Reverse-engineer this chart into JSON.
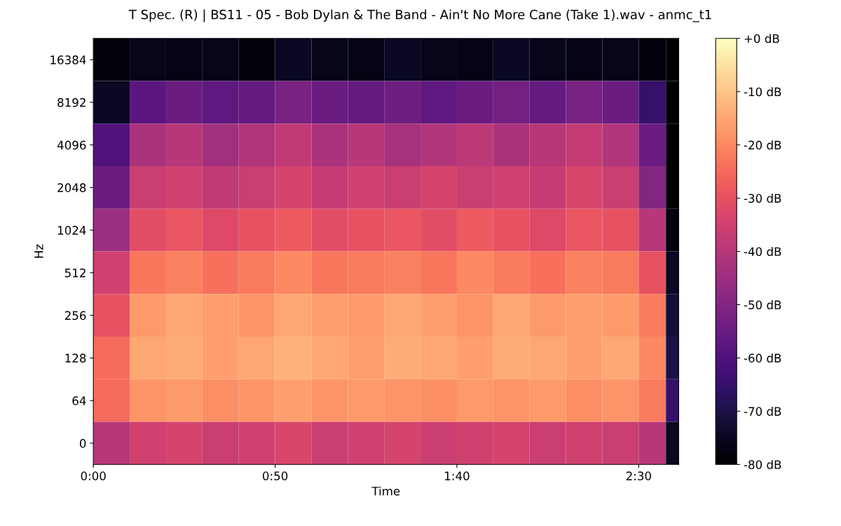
{
  "chart_data": {
    "type": "heatmap",
    "title": "T Spec. (R) | BS11 - 05 - Bob Dylan & The Band - Ain't No More Cane (Take 1).wav - anmc_t1",
    "xlabel": "Time",
    "ylabel": "Hz",
    "x": [
      5,
      15,
      25,
      35,
      45,
      55,
      65,
      75,
      85,
      95,
      105,
      115,
      125,
      135,
      145,
      155,
      160
    ],
    "y_categories": [
      "16384",
      "8192",
      "4096",
      "2048",
      "1024",
      "512",
      "256",
      "128",
      "64",
      "0"
    ],
    "cells": [
      [
        -78,
        -76,
        -77,
        -76,
        -78,
        -75,
        -76,
        -77,
        -75,
        -76,
        -77,
        -75,
        -76,
        -77,
        -76,
        -78,
        -80
      ],
      [
        -75,
        -58,
        -55,
        -57,
        -56,
        -52,
        -55,
        -56,
        -54,
        -57,
        -55,
        -53,
        -56,
        -52,
        -55,
        -65,
        -80
      ],
      [
        -60,
        -42,
        -40,
        -44,
        -41,
        -38,
        -42,
        -40,
        -43,
        -41,
        -39,
        -42,
        -40,
        -37,
        -41,
        -55,
        -80
      ],
      [
        -55,
        -36,
        -35,
        -38,
        -36,
        -34,
        -37,
        -35,
        -36,
        -34,
        -36,
        -35,
        -37,
        -33,
        -36,
        -50,
        -80
      ],
      [
        -45,
        -31,
        -29,
        -32,
        -30,
        -28,
        -31,
        -30,
        -29,
        -31,
        -28,
        -30,
        -32,
        -29,
        -30,
        -40,
        -78
      ],
      [
        -35,
        -23,
        -21,
        -24,
        -22,
        -20,
        -23,
        -22,
        -21,
        -23,
        -20,
        -22,
        -24,
        -21,
        -22,
        -30,
        -75
      ],
      [
        -30,
        -17,
        -15,
        -16,
        -18,
        -15,
        -16,
        -17,
        -15,
        -16,
        -18,
        -15,
        -17,
        -16,
        -17,
        -22,
        -72
      ],
      [
        -25,
        -15,
        -14,
        -16,
        -15,
        -13,
        -15,
        -16,
        -14,
        -15,
        -16,
        -14,
        -15,
        -16,
        -15,
        -20,
        -70
      ],
      [
        -25,
        -18,
        -17,
        -19,
        -18,
        -16,
        -18,
        -17,
        -18,
        -19,
        -17,
        -18,
        -17,
        -19,
        -18,
        -22,
        -65
      ],
      [
        -40,
        -35,
        -34,
        -36,
        -35,
        -33,
        -36,
        -35,
        -34,
        -36,
        -35,
        -34,
        -36,
        -35,
        -36,
        -40,
        -75
      ]
    ],
    "xlim": [
      0,
      161
    ],
    "xticks": [
      {
        "value": 0,
        "label": "0:00"
      },
      {
        "value": 50,
        "label": "0:50"
      },
      {
        "value": 100,
        "label": "1:40"
      },
      {
        "value": 150,
        "label": "2:30"
      }
    ],
    "clim": [
      -80,
      0
    ],
    "cticks": [
      {
        "value": 0,
        "label": "+0 dB"
      },
      {
        "value": -10,
        "label": "-10 dB"
      },
      {
        "value": -20,
        "label": "-20 dB"
      },
      {
        "value": -30,
        "label": "-30 dB"
      },
      {
        "value": -40,
        "label": "-40 dB"
      },
      {
        "value": -50,
        "label": "-50 dB"
      },
      {
        "value": -60,
        "label": "-60 dB"
      },
      {
        "value": -70,
        "label": "-70 dB"
      },
      {
        "value": -80,
        "label": "-80 dB"
      }
    ],
    "grid": false
  }
}
